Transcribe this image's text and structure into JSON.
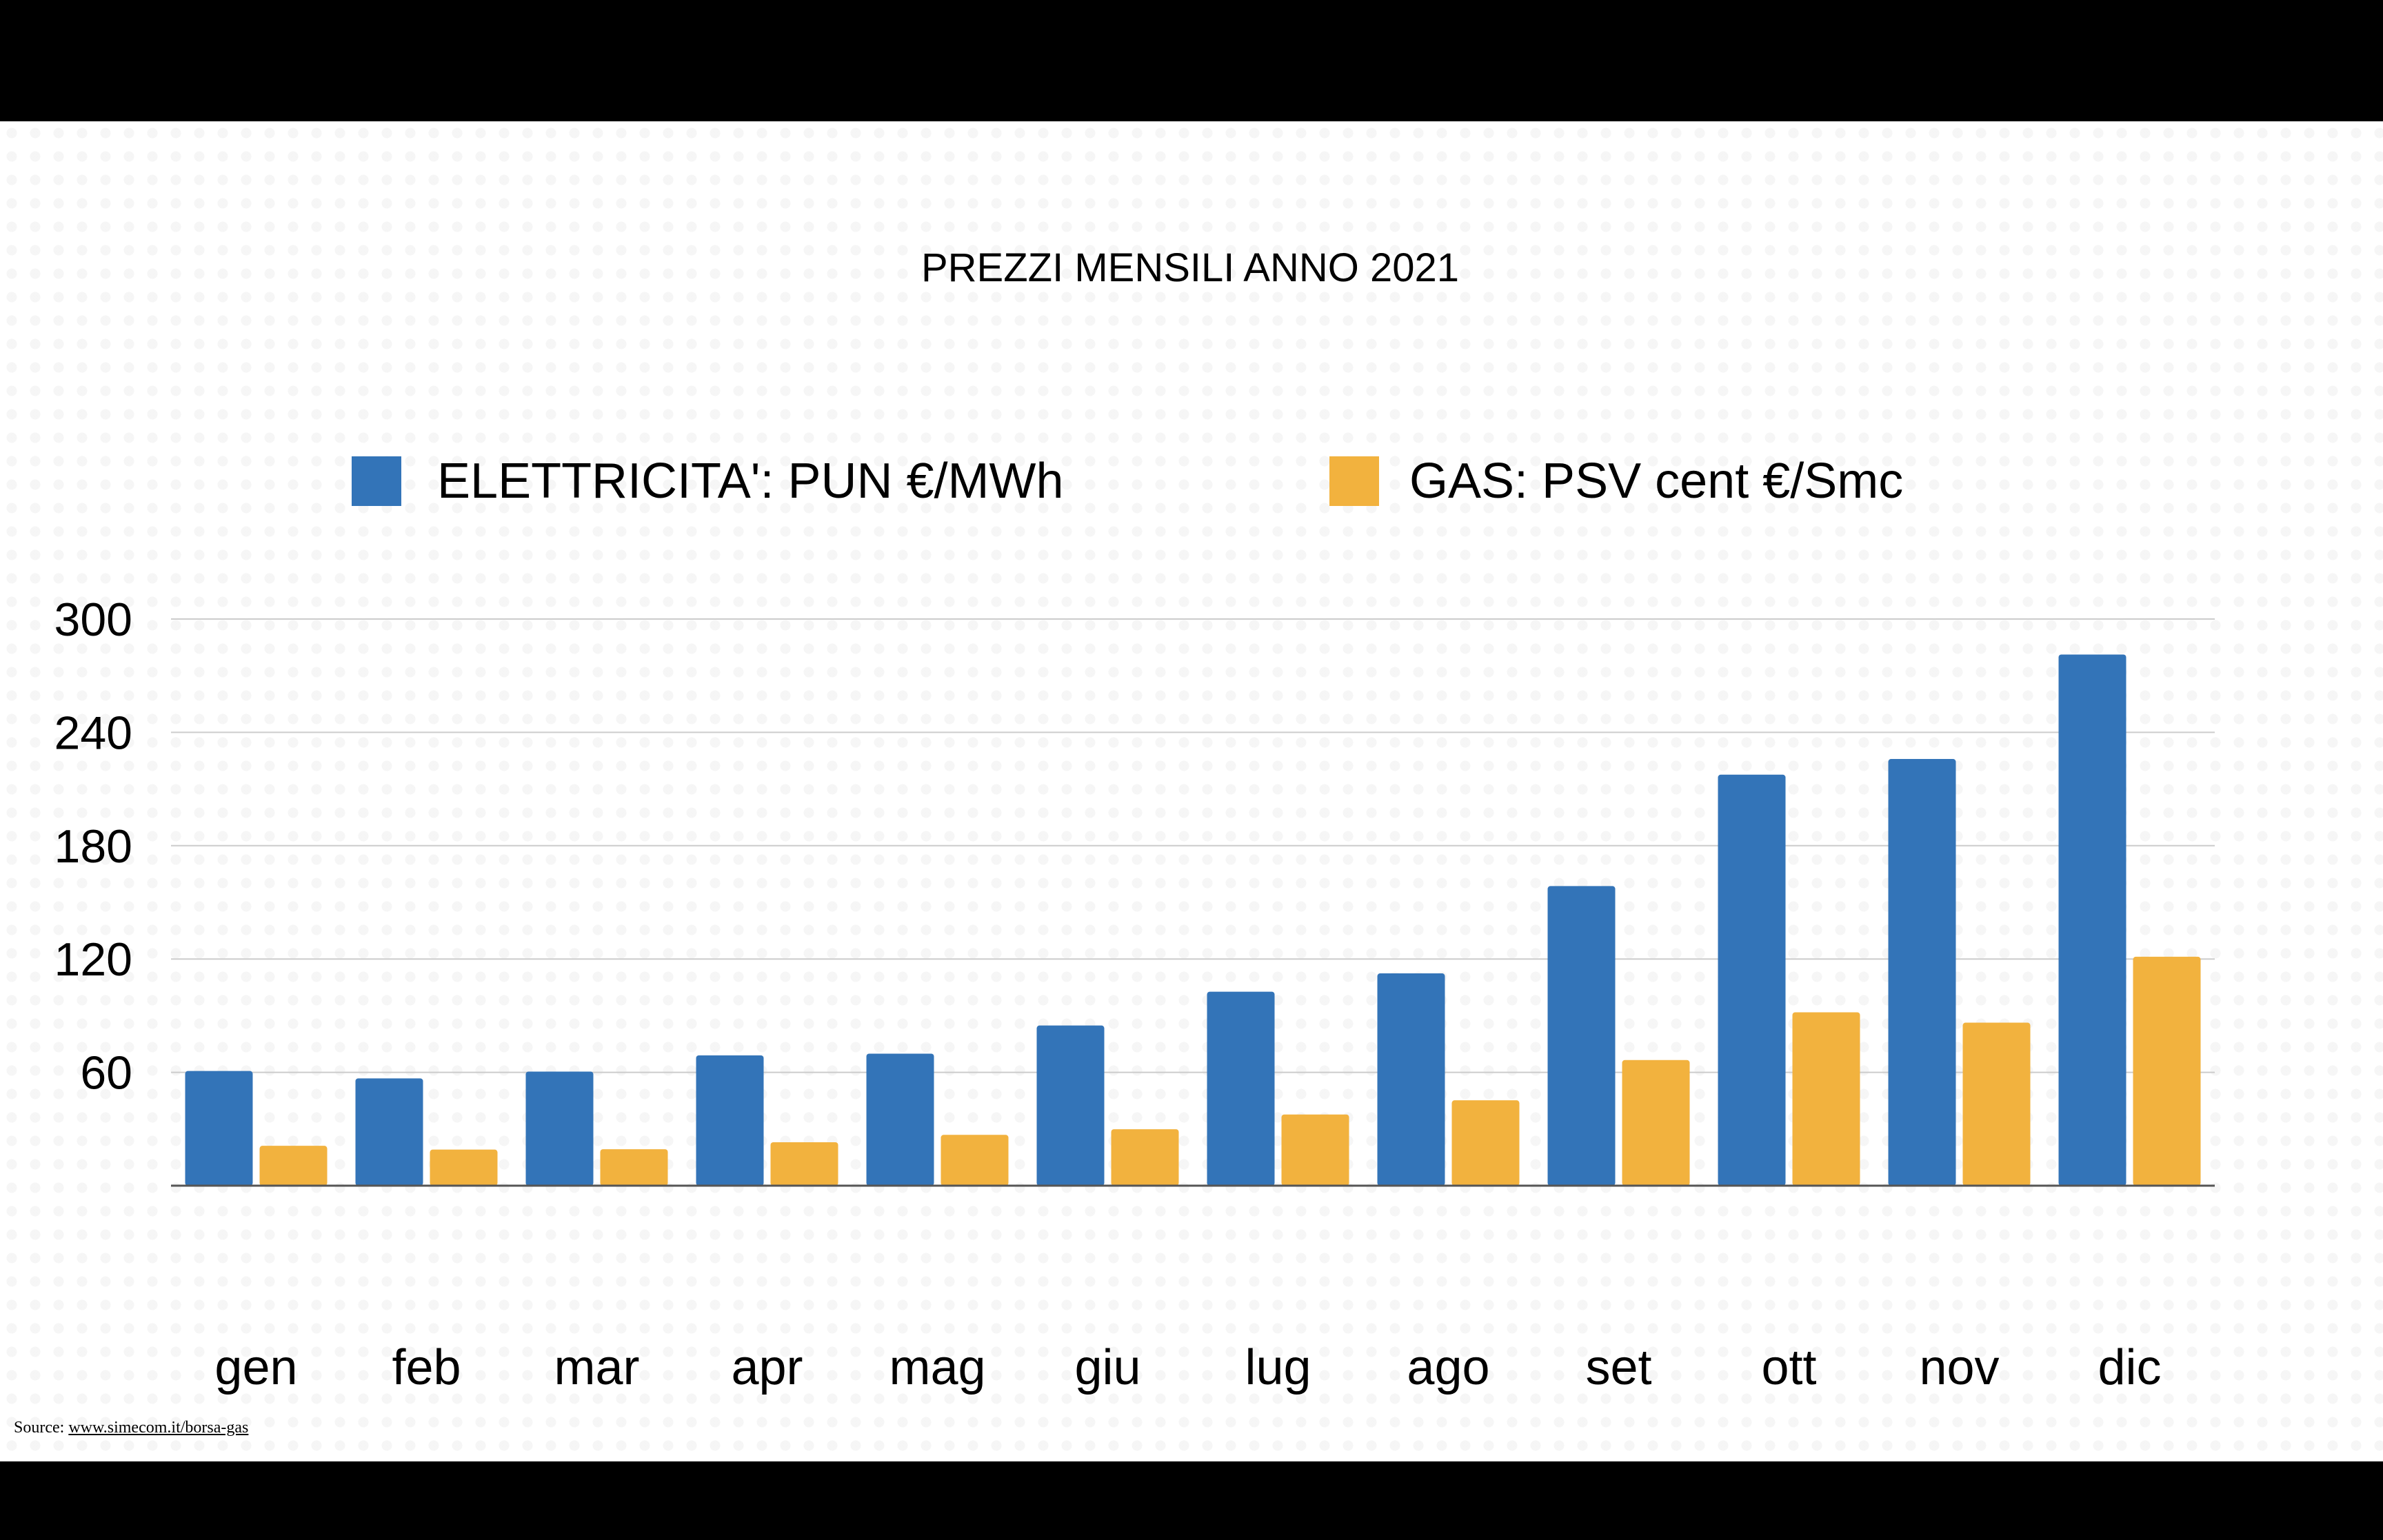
{
  "colors": {
    "background": "#ffffff",
    "frame": "#000000",
    "series_elettricita": "#3374b8",
    "series_gas": "#f2b23e",
    "gridline": "#cccccc",
    "axis": "#555555",
    "text": "#000000"
  },
  "footer": {
    "source_label": "Source:",
    "source_link": "www.simecom.it/borsa-gas"
  },
  "chart_data": {
    "type": "bar",
    "title": "PREZZI MENSILI ANNO 2021",
    "xlabel": "",
    "ylabel": "",
    "ylim": [
      0,
      300
    ],
    "yticks": [
      60,
      120,
      180,
      240,
      300
    ],
    "grid": true,
    "legend_position": "top",
    "categories": [
      "gen",
      "feb",
      "mar",
      "apr",
      "mag",
      "giu",
      "lug",
      "ago",
      "set",
      "ott",
      "nov",
      "dic"
    ],
    "series": [
      {
        "name": "ELETTRICITA': PUN €/MWh",
        "color": "#3374b8",
        "values": [
          60.7,
          56.8,
          60.4,
          69.0,
          69.9,
          84.8,
          102.7,
          112.4,
          158.6,
          217.6,
          225.9,
          281.2
        ]
      },
      {
        "name": "GAS: PSV cent €/Smc",
        "color": "#f2b23e",
        "values": [
          21.1,
          19.1,
          19.3,
          23.0,
          26.9,
          29.9,
          37.7,
          45.2,
          66.5,
          91.8,
          86.3,
          121.2
        ]
      }
    ]
  }
}
